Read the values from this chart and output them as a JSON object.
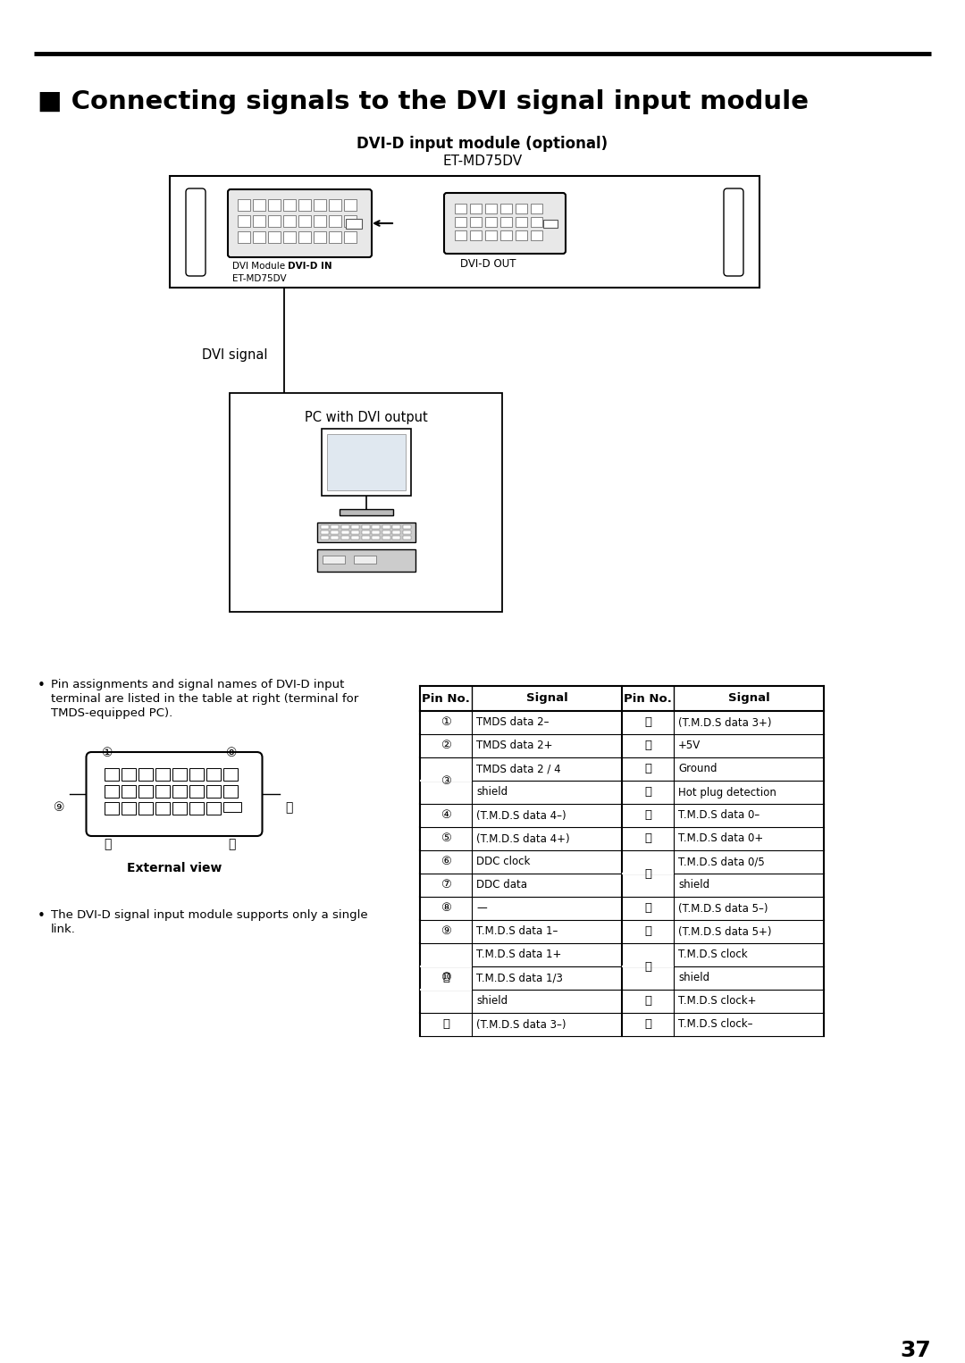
{
  "title": "■ Connecting signals to the DVI signal input module",
  "subtitle1": "DVI-D input module (optional)",
  "subtitle2": "ET-MD75DV",
  "dvi_in_label1": "DVI Module  DVI-D IN",
  "dvi_in_label2": "ET-MD75DV",
  "dvi_out_label": "DVI-D OUT",
  "dvi_signal_label": "DVI signal",
  "pc_box_label": "PC with DVI output",
  "bullet1_line1": "Pin assignments and signal names of DVI-D input",
  "bullet1_line2": "terminal are listed in the table at right (terminal for",
  "bullet1_line3": "TMDS-equipped PC).",
  "ext_view_label": "External view",
  "bullet2_line1": "The DVI-D signal input module supports only a single",
  "bullet2_line2": "link.",
  "page_number": "37",
  "bg_color": "#ffffff"
}
